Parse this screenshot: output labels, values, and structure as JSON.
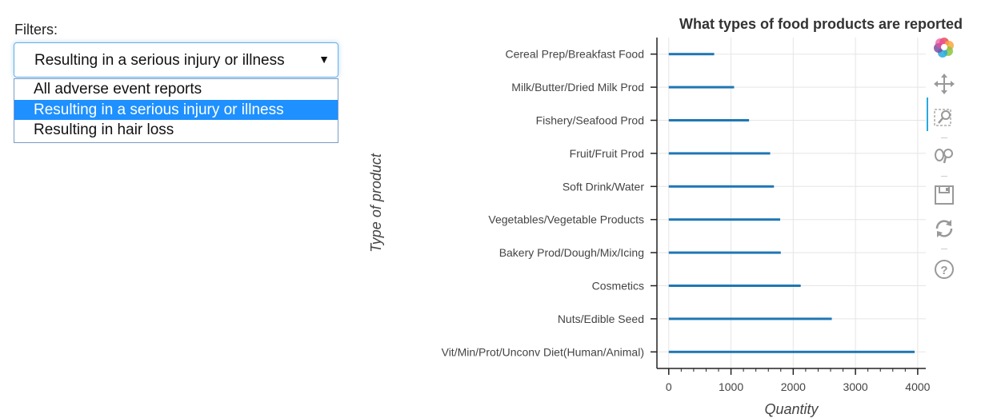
{
  "filters": {
    "label": "Filters:",
    "selected": "Resulting in a serious injury or illness",
    "options": [
      "All adverse event reports",
      "Resulting in a serious injury or illness",
      "Resulting in hair loss"
    ]
  },
  "chart_data": {
    "type": "bar",
    "orientation": "horizontal",
    "title": "What types of food products are reported",
    "xlabel": "Quantity",
    "ylabel": "Type of product",
    "categories": [
      "Cereal Prep/Breakfast Food",
      "Milk/Butter/Dried Milk Prod",
      "Fishery/Seafood Prod",
      "Fruit/Fruit Prod",
      "Soft Drink/Water",
      "Vegetables/Vegetable Products",
      "Bakery Prod/Dough/Mix/Icing",
      "Cosmetics",
      "Nuts/Edible Seed",
      "Vit/Min/Prot/Unconv Diet(Human/Animal)"
    ],
    "values": [
      730,
      1050,
      1290,
      1630,
      1690,
      1790,
      1800,
      2120,
      2620,
      3950
    ],
    "xlim": [
      -190,
      4130
    ],
    "xticks": [
      0,
      1000,
      2000,
      3000,
      4000
    ],
    "grid": true,
    "bar_color": "#1f77b4"
  },
  "toolbar": {
    "icons": [
      "bokeh-logo-icon",
      "pan-icon",
      "box-zoom-icon",
      "wheel-zoom-icon",
      "save-icon",
      "reset-icon",
      "help-icon"
    ]
  }
}
